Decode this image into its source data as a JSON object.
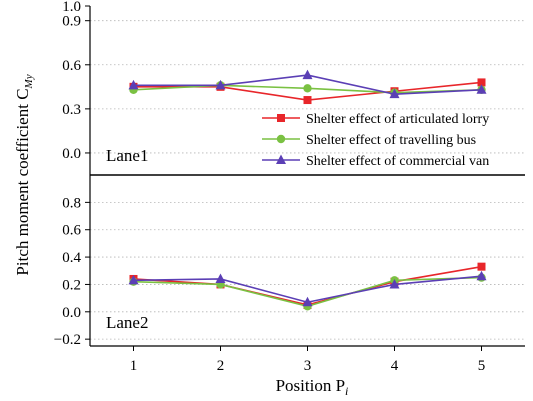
{
  "chart_data": {
    "type": "line",
    "x": [
      1,
      2,
      3,
      4,
      5
    ],
    "xlabel": "Position P",
    "xlabel_sub": "i",
    "ylabel": "Pitch moment coefficient C",
    "ylabel_sub": "My",
    "legend_position": "right, inside upper panel",
    "series_styles": [
      {
        "color": "#e8262a",
        "marker": "square"
      },
      {
        "color": "#7ac142",
        "marker": "circle"
      },
      {
        "color": "#5b3fb5",
        "marker": "triangle"
      }
    ],
    "panels": [
      {
        "label": "Lane1",
        "ylim": [
          -0.15,
          1.0
        ],
        "yticks": [
          0.0,
          0.3,
          0.6,
          0.9,
          1.0
        ],
        "ytick_labels": [
          "0.0",
          "0.3",
          "0.6",
          "0.9",
          "1.0"
        ],
        "series": [
          {
            "name": "Shelter effect of articulated lorry",
            "values": [
              0.45,
              0.45,
              0.36,
              0.42,
              0.48
            ]
          },
          {
            "name": "Shelter effect of travelling bus",
            "values": [
              0.43,
              0.46,
              0.44,
              0.41,
              0.43
            ]
          },
          {
            "name": "Shelter effect of commercial van",
            "values": [
              0.46,
              0.46,
              0.53,
              0.4,
              0.43
            ]
          }
        ]
      },
      {
        "label": "Lane2",
        "ylim": [
          -0.25,
          1.0
        ],
        "yticks": [
          -0.2,
          0.0,
          0.2,
          0.4,
          0.6,
          0.8
        ],
        "ytick_labels": [
          "−0.2",
          "0.0",
          "0.2",
          "0.4",
          "0.6",
          "0.8"
        ],
        "series": [
          {
            "name": "Shelter effect of articulated lorry",
            "values": [
              0.24,
              0.2,
              0.05,
              0.22,
              0.33
            ]
          },
          {
            "name": "Shelter effect of travelling bus",
            "values": [
              0.22,
              0.2,
              0.04,
              0.23,
              0.25
            ]
          },
          {
            "name": "Shelter effect of commercial van",
            "values": [
              0.23,
              0.24,
              0.07,
              0.2,
              0.26
            ]
          }
        ]
      }
    ]
  }
}
